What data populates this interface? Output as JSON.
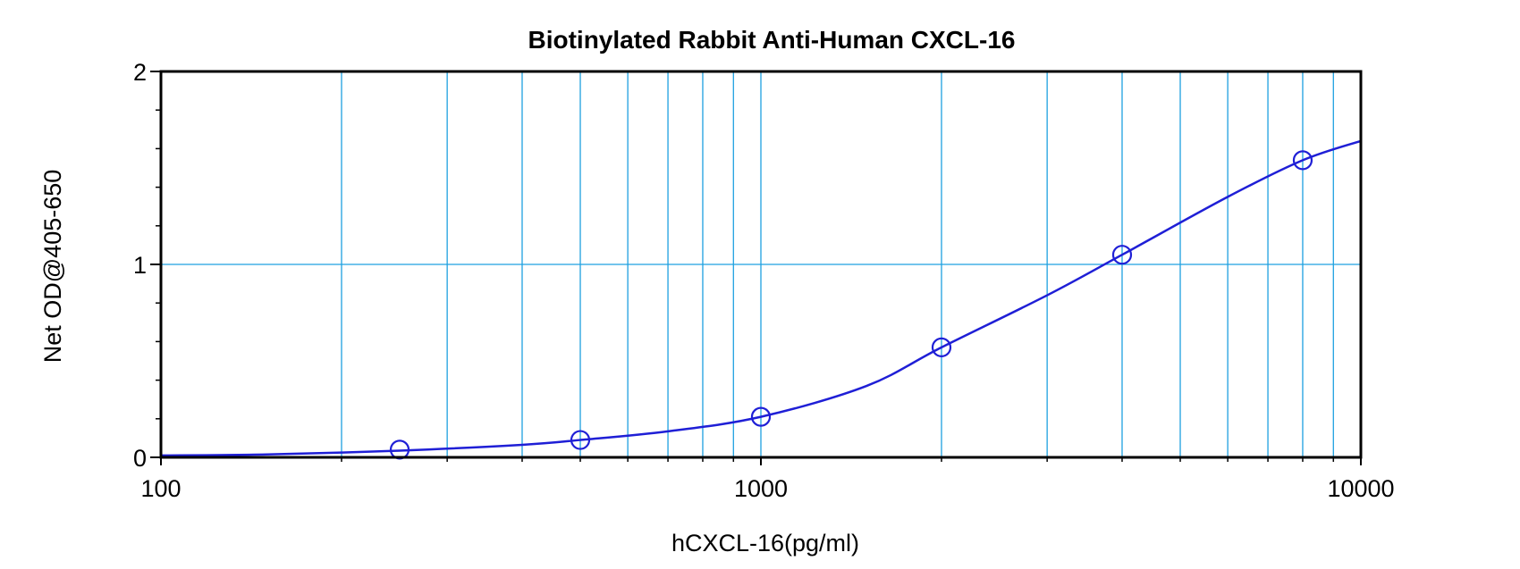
{
  "chart_data": {
    "type": "scatter",
    "title": "Biotinylated Rabbit Anti-Human CXCL-16",
    "xlabel": "hCXCL-16(pg/ml)",
    "ylabel": "Net OD@405-650",
    "x_scale": "log",
    "xlim": [
      100,
      10000
    ],
    "ylim": [
      0,
      2
    ],
    "x_ticks": [
      "100",
      "1000",
      "10000"
    ],
    "y_ticks": [
      "0",
      "1",
      "2"
    ],
    "grid": true,
    "legend": "none",
    "series": [
      {
        "points": [
          {
            "x": 250,
            "y": 0.04
          },
          {
            "x": 500,
            "y": 0.09
          },
          {
            "x": 1000,
            "y": 0.21
          },
          {
            "x": 2000,
            "y": 0.57
          },
          {
            "x": 4000,
            "y": 1.05
          },
          {
            "x": 8000,
            "y": 1.54
          }
        ]
      }
    ],
    "fit_curve": {
      "points": [
        {
          "x": 100,
          "y": 0.01
        },
        {
          "x": 150,
          "y": 0.015
        },
        {
          "x": 250,
          "y": 0.035
        },
        {
          "x": 400,
          "y": 0.065
        },
        {
          "x": 500,
          "y": 0.09
        },
        {
          "x": 700,
          "y": 0.135
        },
        {
          "x": 1000,
          "y": 0.21
        },
        {
          "x": 1500,
          "y": 0.37
        },
        {
          "x": 2000,
          "y": 0.57
        },
        {
          "x": 3000,
          "y": 0.84
        },
        {
          "x": 4000,
          "y": 1.05
        },
        {
          "x": 6000,
          "y": 1.35
        },
        {
          "x": 8000,
          "y": 1.54
        },
        {
          "x": 10000,
          "y": 1.64
        }
      ]
    },
    "colors": {
      "series": "#1f1fd6",
      "grid": "#1ea0e0",
      "axis": "#000000"
    }
  }
}
